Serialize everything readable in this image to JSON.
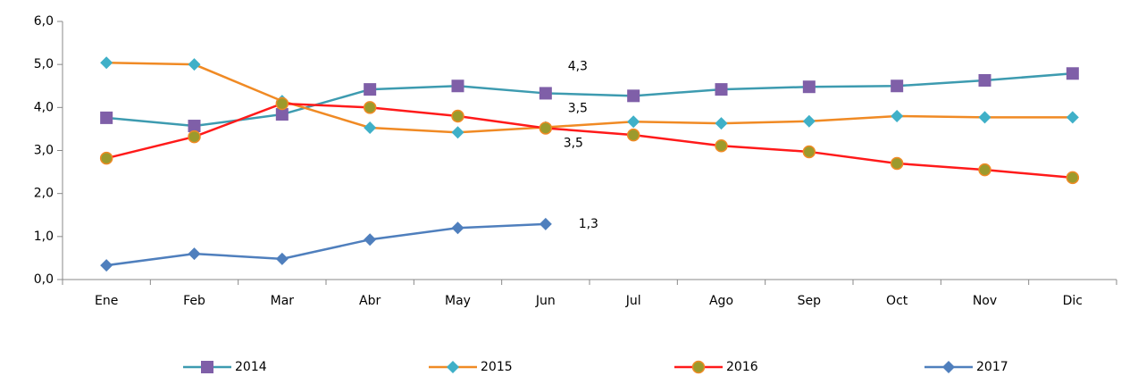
{
  "chart_data": {
    "type": "line",
    "categories": [
      "Ene",
      "Feb",
      "Mar",
      "Abr",
      "May",
      "Jun",
      "Jul",
      "Ago",
      "Sep",
      "Oct",
      "Nov",
      "Dic"
    ],
    "series": [
      {
        "name": "2014",
        "color": "#3d9bb0",
        "marker": "square",
        "marker_color": "#7f5fa8",
        "values": [
          3.76,
          3.57,
          3.84,
          4.42,
          4.5,
          4.33,
          4.27,
          4.42,
          4.48,
          4.5,
          4.63,
          4.79
        ],
        "value_labels": [
          null,
          null,
          null,
          null,
          null,
          "4,3",
          null,
          null,
          null,
          null,
          null,
          null
        ]
      },
      {
        "name": "2015",
        "color": "#f08a24",
        "marker": "diamond",
        "marker_color": "#3fb0c8",
        "values": [
          5.04,
          5.0,
          4.15,
          3.53,
          3.42,
          3.54,
          3.67,
          3.63,
          3.68,
          3.8,
          3.77,
          3.77
        ],
        "value_labels": [
          null,
          null,
          null,
          null,
          null,
          "3,5",
          null,
          null,
          null,
          null,
          null,
          null
        ]
      },
      {
        "name": "2016",
        "color": "#ff1a1a",
        "marker": "circle",
        "marker_color": "#9c9a2c",
        "values": [
          2.82,
          3.32,
          4.09,
          4.0,
          3.8,
          3.52,
          3.36,
          3.11,
          2.97,
          2.7,
          2.55,
          2.37
        ],
        "value_labels": [
          null,
          null,
          null,
          null,
          null,
          "3,5",
          null,
          null,
          null,
          null,
          null,
          null
        ]
      },
      {
        "name": "2017",
        "color": "#4f7fbd",
        "marker": "diamond",
        "marker_color": "#4f7fbd",
        "values": [
          0.33,
          0.6,
          0.48,
          0.93,
          1.2,
          1.29,
          null,
          null,
          null,
          null,
          null,
          null
        ],
        "value_labels": [
          null,
          null,
          null,
          null,
          null,
          "1,3",
          null,
          null,
          null,
          null,
          null,
          null
        ]
      }
    ],
    "ylim": [
      0,
      6
    ],
    "yticks": [
      {
        "value": 0,
        "label": "0,0"
      },
      {
        "value": 1,
        "label": "1,0"
      },
      {
        "value": 2,
        "label": "2,0"
      },
      {
        "value": 3,
        "label": "3,0"
      },
      {
        "value": 4,
        "label": "4,0"
      },
      {
        "value": 5,
        "label": "5,0"
      },
      {
        "value": 6,
        "label": "6,0"
      }
    ],
    "grid": false,
    "legend": "bottom"
  }
}
